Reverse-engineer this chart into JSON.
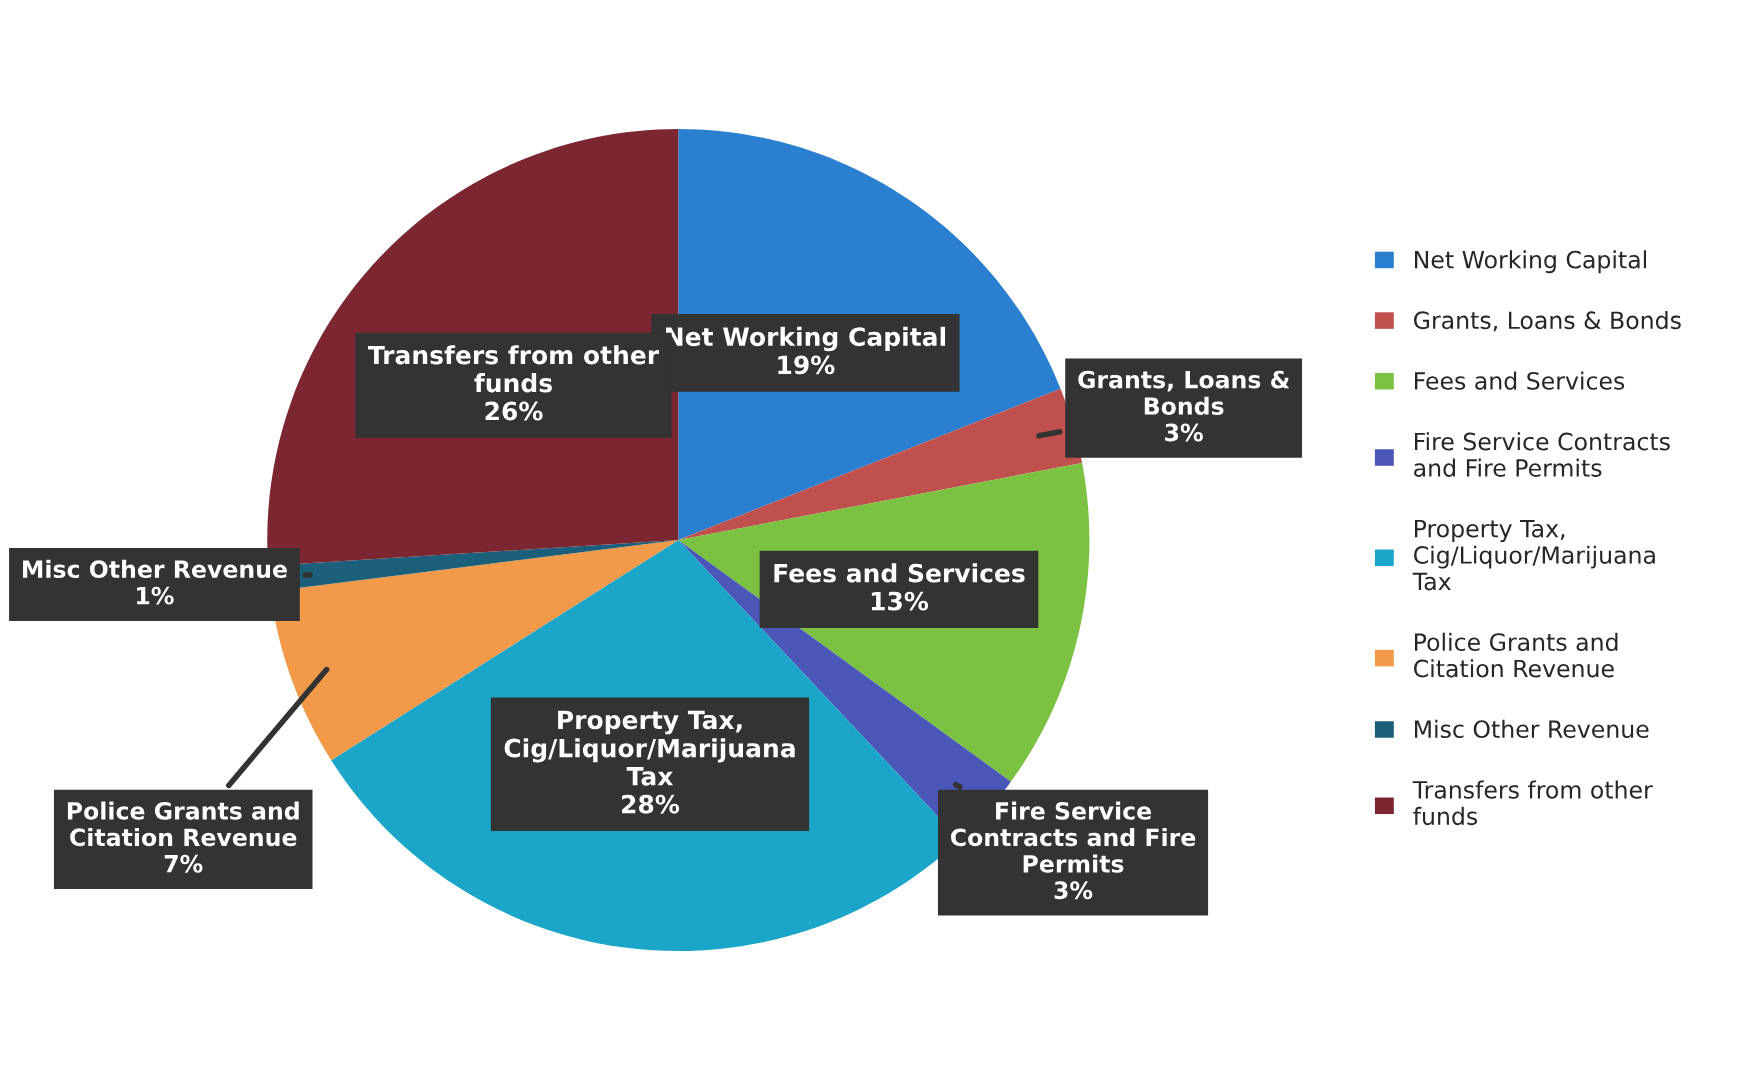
{
  "chart_data": {
    "type": "pie",
    "categories": [
      "Net Working Capital",
      "Grants, Loans & Bonds",
      "Fees and Services",
      "Fire Service Contracts and Fire Permits",
      "Property Tax, Cig/Liquor/Marijuana Tax",
      "Police Grants and Citation Revenue",
      "Misc Other Revenue",
      "Transfers from other funds"
    ],
    "values": [
      19,
      3,
      13,
      3,
      28,
      7,
      1,
      26
    ],
    "value_labels": [
      "19%",
      "3%",
      "13%",
      "3%",
      "28%",
      "7%",
      "1%",
      "26%"
    ],
    "colors": [
      "#2a7fd0",
      "#c0504d",
      "#7cc242",
      "#4a56b8",
      "#1ba6c9",
      "#f39a4a",
      "#1c5f7a",
      "#7b2631"
    ],
    "legend": "right"
  }
}
